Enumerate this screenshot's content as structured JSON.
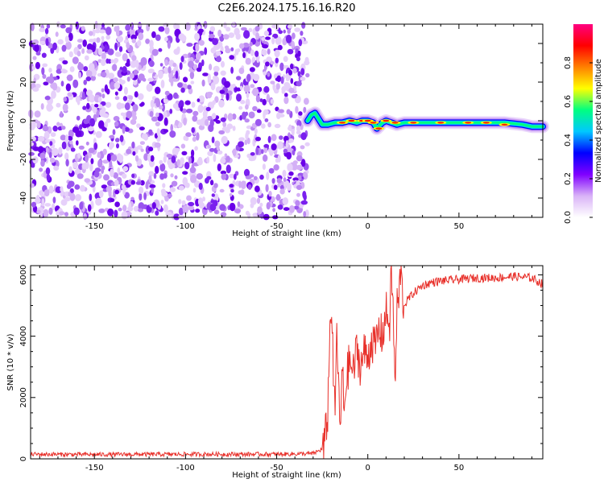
{
  "title": "C2E6.2024.175.16.16.R20",
  "chart_data": [
    {
      "type": "heatmap",
      "xlabel": "Height of straight line (km)",
      "ylabel": "Frequency (Hz)",
      "xlim": [
        -185,
        96
      ],
      "ylim": [
        -50,
        50
      ],
      "xticks": [
        -150,
        -100,
        -50,
        0,
        50
      ],
      "yticks": [
        -40,
        -20,
        0,
        20,
        40
      ],
      "noise_region_x": [
        -185,
        -33
      ],
      "signal_trace": {
        "x": [
          -33,
          -31,
          -29,
          -27,
          -25,
          -22,
          -18,
          -14,
          -10,
          -6,
          -3,
          0,
          3,
          5,
          8,
          10,
          13,
          16,
          20,
          30,
          45,
          60,
          75,
          85,
          90,
          96
        ],
        "y": [
          0,
          3,
          4,
          1,
          -2,
          -2,
          -1,
          -1,
          0,
          -1,
          0,
          0,
          -1,
          -4,
          -1,
          0,
          -1,
          -2,
          -1,
          -1,
          -1,
          -1,
          -1,
          -2,
          -3,
          -3
        ]
      },
      "colorbar": {
        "label": "Normalized spectral amplitude",
        "range": [
          0,
          1
        ],
        "ticks": [
          "0.0",
          "0.2",
          "0.4",
          "0.6",
          "0.8"
        ],
        "colormap": [
          "#ffffff",
          "#d9b3f7",
          "#8000ff",
          "#0000ff",
          "#00c8ff",
          "#00ff80",
          "#ffff00",
          "#ff8000",
          "#ff0000",
          "#ff0080"
        ]
      }
    },
    {
      "type": "line",
      "xlabel": "Height of straight line (km)",
      "ylabel": "SNR (10 * v/v)",
      "xlim": [
        -185,
        96
      ],
      "ylim": [
        0,
        6300
      ],
      "xticks": [
        -150,
        -100,
        -50,
        0,
        50
      ],
      "yticks": [
        0,
        2000,
        4000,
        6000
      ],
      "color": "#e8302a",
      "series": [
        {
          "x": [
            -185,
            -150,
            -100,
            -50,
            -30,
            -24,
            -22,
            -21,
            -20,
            -19,
            -18,
            -17,
            -16,
            -15,
            -14,
            -13,
            -12,
            -10,
            -8,
            -6,
            -4,
            -2,
            0,
            2,
            4,
            6,
            8,
            10,
            12,
            13,
            14,
            15,
            16,
            17,
            18,
            19,
            20,
            22,
            25,
            30,
            35,
            40,
            50,
            60,
            70,
            80,
            90,
            96
          ],
          "y": [
            150,
            140,
            150,
            150,
            170,
            350,
            1500,
            3800,
            5200,
            3000,
            1200,
            4500,
            2000,
            900,
            3000,
            1500,
            2500,
            3200,
            2800,
            3600,
            3000,
            3500,
            3300,
            3900,
            3600,
            4200,
            4000,
            4800,
            4400,
            6200,
            4600,
            2100,
            5000,
            5100,
            6250,
            5300,
            5000,
            5200,
            5400,
            5650,
            5750,
            5800,
            5850,
            5900,
            5900,
            5950,
            5900,
            5700
          ]
        }
      ]
    }
  ]
}
